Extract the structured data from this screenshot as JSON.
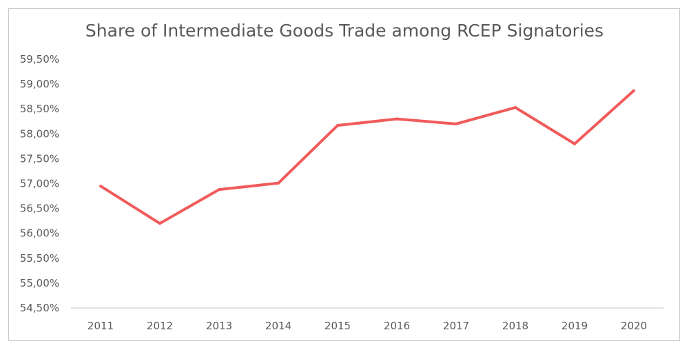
{
  "chart_data": {
    "type": "line",
    "title": "Share of Intermediate Goods Trade among RCEP Signatories",
    "xlabel": "",
    "ylabel": "",
    "categories": [
      "2011",
      "2012",
      "2013",
      "2014",
      "2015",
      "2016",
      "2017",
      "2018",
      "2019",
      "2020"
    ],
    "series": [
      {
        "values": [
          56.95,
          56.2,
          56.88,
          57.01,
          58.17,
          58.3,
          58.2,
          58.53,
          57.8,
          58.87
        ],
        "color": "#f15b5b"
      }
    ],
    "ylim": [
      54.5,
      59.5
    ],
    "yticks": [
      "54,50%",
      "55,00%",
      "55,50%",
      "56,00%",
      "56,50%",
      "57,00%",
      "57,50%",
      "58,00%",
      "58,50%",
      "59,00%",
      "59,50%"
    ],
    "grid": false,
    "legend": "none"
  }
}
